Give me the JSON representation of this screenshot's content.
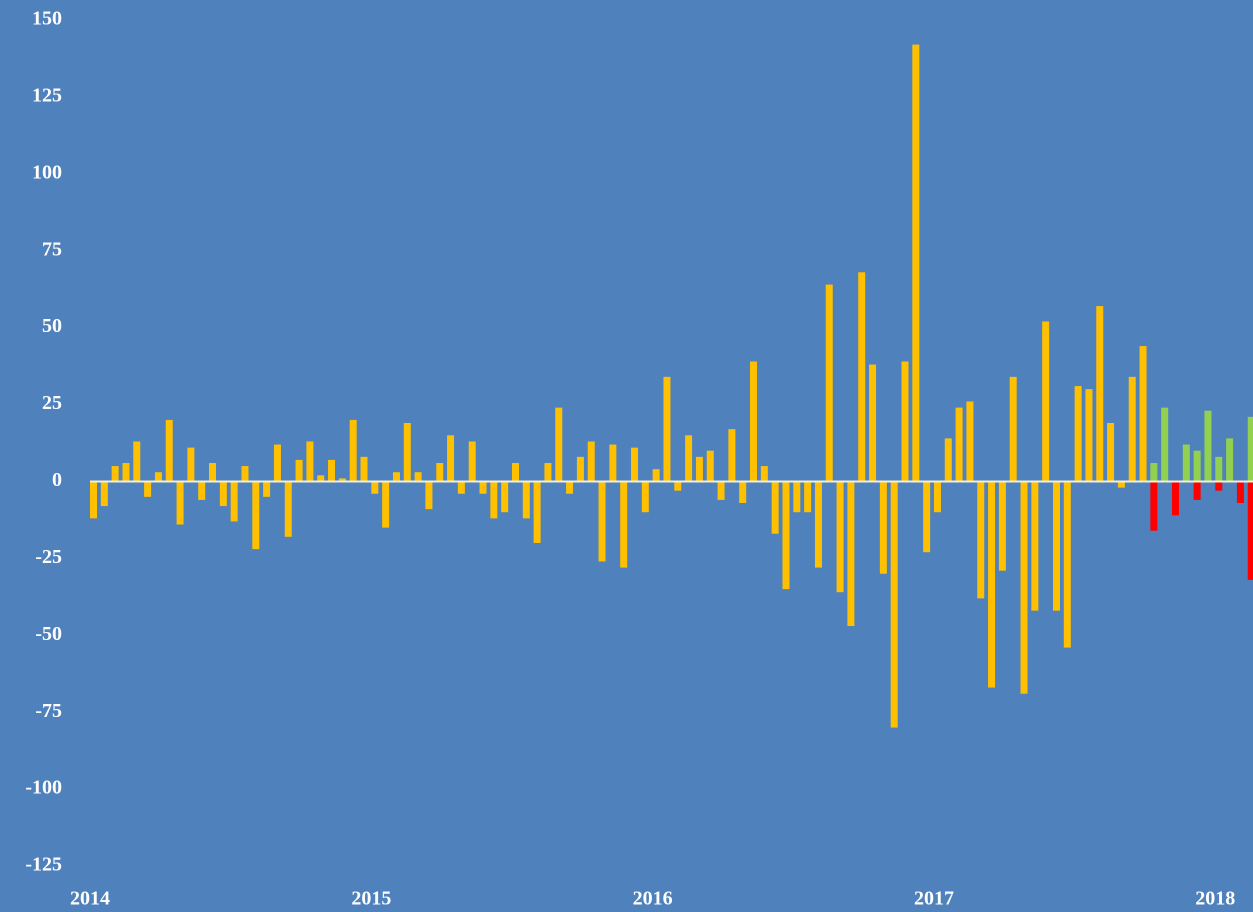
{
  "chart_data": {
    "type": "bar",
    "categories": [
      "2014",
      null,
      null,
      null,
      null,
      null,
      null,
      null,
      null,
      null,
      null,
      null,
      null,
      null,
      null,
      null,
      null,
      null,
      null,
      null,
      null,
      null,
      null,
      null,
      null,
      null,
      "2015",
      null,
      null,
      null,
      null,
      null,
      null,
      null,
      null,
      null,
      null,
      null,
      null,
      null,
      null,
      null,
      null,
      null,
      null,
      null,
      null,
      null,
      null,
      null,
      null,
      null,
      "2016",
      null,
      null,
      null,
      null,
      null,
      null,
      null,
      null,
      null,
      null,
      null,
      null,
      null,
      null,
      null,
      null,
      null,
      null,
      null,
      null,
      null,
      null,
      null,
      null,
      null,
      "2017",
      null,
      null,
      null,
      null,
      null,
      null,
      null,
      null,
      null,
      null,
      null,
      null,
      null,
      null,
      null,
      null,
      null,
      null,
      null,
      null,
      null,
      null,
      null,
      null,
      null,
      "2018",
      null,
      null,
      null
    ],
    "series": [
      {
        "color": "#ffc000",
        "values": [
          -12,
          -8,
          5,
          6,
          13,
          -5,
          3,
          20,
          -14,
          11,
          -6,
          6,
          -8,
          -13,
          5,
          -22,
          -5,
          12,
          -18,
          7,
          13,
          2,
          7,
          1,
          20,
          8,
          -4,
          -15,
          3,
          19,
          3,
          -9,
          6,
          15,
          -4,
          13,
          -4,
          -12,
          -10,
          6,
          -12,
          -20,
          6,
          24,
          -4,
          8,
          13,
          -26,
          12,
          -28,
          11,
          -10,
          4,
          34,
          -3,
          15,
          8,
          10,
          -6,
          17,
          -7,
          39,
          5,
          -17,
          -35,
          -10,
          -10,
          -28,
          64,
          -36,
          -47,
          68,
          38,
          -30,
          -80,
          39,
          142,
          -23,
          -10,
          14,
          24,
          26,
          -38,
          -67,
          -29,
          34,
          -69,
          -42,
          52,
          -42,
          -54,
          31,
          30,
          57,
          19,
          -2,
          34,
          44,
          null,
          null,
          null,
          null,
          null,
          null,
          null,
          null,
          null,
          null
        ]
      },
      {
        "color": "#92d050",
        "values": [
          null,
          null,
          null,
          null,
          null,
          null,
          null,
          null,
          null,
          null,
          null,
          null,
          null,
          null,
          null,
          null,
          null,
          null,
          null,
          null,
          null,
          null,
          null,
          null,
          null,
          null,
          null,
          null,
          null,
          null,
          null,
          null,
          null,
          null,
          null,
          null,
          null,
          null,
          null,
          null,
          null,
          null,
          null,
          null,
          null,
          null,
          null,
          null,
          null,
          null,
          null,
          null,
          null,
          null,
          null,
          null,
          null,
          null,
          null,
          null,
          null,
          null,
          null,
          null,
          null,
          null,
          null,
          null,
          null,
          null,
          null,
          null,
          null,
          null,
          null,
          null,
          null,
          null,
          null,
          null,
          null,
          null,
          null,
          null,
          null,
          null,
          null,
          null,
          null,
          null,
          null,
          null,
          null,
          null,
          null,
          null,
          null,
          null,
          6,
          24,
          null,
          12,
          10,
          23,
          8,
          14,
          null,
          21
        ]
      },
      {
        "color": "#ff0000",
        "values": [
          null,
          null,
          null,
          null,
          null,
          null,
          null,
          null,
          null,
          null,
          null,
          null,
          null,
          null,
          null,
          null,
          null,
          null,
          null,
          null,
          null,
          null,
          null,
          null,
          null,
          null,
          null,
          null,
          null,
          null,
          null,
          null,
          null,
          null,
          null,
          null,
          null,
          null,
          null,
          null,
          null,
          null,
          null,
          null,
          null,
          null,
          null,
          null,
          null,
          null,
          null,
          null,
          null,
          null,
          null,
          null,
          null,
          null,
          null,
          null,
          null,
          null,
          null,
          null,
          null,
          null,
          null,
          null,
          null,
          null,
          null,
          null,
          null,
          null,
          null,
          null,
          null,
          null,
          null,
          null,
          null,
          null,
          null,
          null,
          null,
          null,
          null,
          null,
          null,
          null,
          null,
          null,
          null,
          null,
          null,
          null,
          null,
          null,
          -16,
          null,
          -11,
          null,
          -6,
          null,
          -3,
          null,
          -7,
          -32
        ]
      }
    ],
    "ylim": [
      -125,
      150
    ],
    "yticks": [
      -125,
      -100,
      -75,
      -50,
      -25,
      0,
      25,
      50,
      75,
      100,
      125,
      150
    ],
    "grid": false
  }
}
